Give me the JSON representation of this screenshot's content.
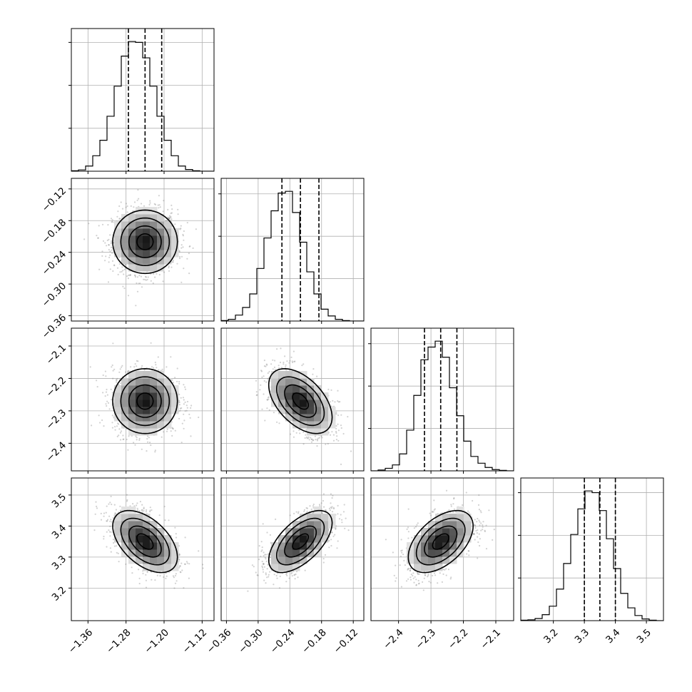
{
  "chart_data": {
    "type": "corner",
    "grid": true,
    "parameters": [
      {
        "range": [
          -1.395,
          -1.095
        ],
        "ticks": [
          -1.36,
          -1.28,
          -1.2,
          -1.12
        ],
        "tick_labels": [
          "−1.36",
          "−1.28",
          "−1.20",
          "−1.12"
        ],
        "mean": -1.24,
        "std": 0.034,
        "quantiles": [
          -1.275,
          -1.24,
          -1.205
        ],
        "histogram": {
          "bins": [
            -1.395,
            -1.38,
            -1.365,
            -1.35,
            -1.335,
            -1.32,
            -1.305,
            -1.29,
            -1.275,
            -1.26,
            -1.245,
            -1.23,
            -1.215,
            -1.2,
            -1.185,
            -1.17,
            -1.155,
            -1.14,
            -1.125,
            -1.11,
            -1.095
          ],
          "counts": [
            1,
            3,
            12,
            36,
            72,
            128,
            198,
            268,
            302,
            300,
            264,
            198,
            128,
            72,
            36,
            12,
            4,
            1,
            0,
            0
          ]
        }
      },
      {
        "range": [
          -0.37,
          -0.1
        ],
        "ticks": [
          -0.36,
          -0.3,
          -0.24,
          -0.18,
          -0.12
        ],
        "tick_labels": [
          "−0.36",
          "−0.30",
          "−0.24",
          "−0.18",
          "−0.12"
        ],
        "mean": -0.22,
        "std": 0.03,
        "quantiles": [
          -0.255,
          -0.22,
          -0.185
        ],
        "histogram": {
          "bins": [
            -0.37,
            -0.3565,
            -0.343,
            -0.3295,
            -0.316,
            -0.3025,
            -0.289,
            -0.2755,
            -0.262,
            -0.2485,
            -0.235,
            -0.2215,
            -0.208,
            -0.1945,
            -0.181,
            -0.1675,
            -0.154,
            -0.1405,
            -0.127,
            -0.1135,
            -0.1
          ],
          "counts": [
            1,
            4,
            14,
            32,
            64,
            124,
            196,
            260,
            302,
            306,
            256,
            186,
            116,
            64,
            28,
            12,
            4,
            1,
            0,
            0
          ]
        }
      },
      {
        "range": [
          -2.485,
          -2.045
        ],
        "ticks": [
          -2.4,
          -2.3,
          -2.2,
          -2.1
        ],
        "tick_labels": [
          "−2.4",
          "−2.3",
          "−2.2",
          "−2.1"
        ],
        "mean": -2.27,
        "std": 0.05,
        "quantiles": [
          -2.32,
          -2.27,
          -2.22
        ],
        "histogram": {
          "bins": [
            -2.485,
            -2.463,
            -2.441,
            -2.419,
            -2.397,
            -2.375,
            -2.353,
            -2.331,
            -2.309,
            -2.287,
            -2.265,
            -2.243,
            -2.221,
            -2.199,
            -2.177,
            -2.155,
            -2.133,
            -2.111,
            -2.089,
            -2.067,
            -2.045
          ],
          "counts": [
            0,
            2,
            6,
            14,
            40,
            96,
            178,
            262,
            292,
            306,
            268,
            196,
            130,
            70,
            34,
            18,
            8,
            3,
            1,
            0
          ]
        }
      },
      {
        "range": [
          3.095,
          3.555
        ],
        "ticks": [
          3.2,
          3.3,
          3.4,
          3.5
        ],
        "tick_labels": [
          "3.2",
          "3.3",
          "3.4",
          "3.5"
        ],
        "mean": 3.35,
        "std": 0.05,
        "quantiles": [
          3.3,
          3.35,
          3.4
        ],
        "histogram": {
          "bins": [
            3.095,
            3.118,
            3.141,
            3.164,
            3.187,
            3.21,
            3.233,
            3.256,
            3.279,
            3.302,
            3.325,
            3.348,
            3.371,
            3.394,
            3.417,
            3.44,
            3.463,
            3.486,
            3.509,
            3.532,
            3.555
          ],
          "counts": [
            1,
            2,
            5,
            14,
            34,
            74,
            134,
            202,
            262,
            304,
            300,
            258,
            192,
            122,
            64,
            30,
            12,
            4,
            1,
            0
          ]
        }
      }
    ],
    "correlations": [
      [
        1.0,
        0.0,
        0.0,
        -0.5
      ],
      [
        0.0,
        1.0,
        -0.5,
        0.6
      ],
      [
        0.0,
        -0.5,
        1.0,
        0.5
      ],
      [
        -0.5,
        0.6,
        0.5,
        1.0
      ]
    ],
    "contour_levels_sigma": [
      0.5,
      1.0,
      1.5,
      2.0
    ]
  }
}
